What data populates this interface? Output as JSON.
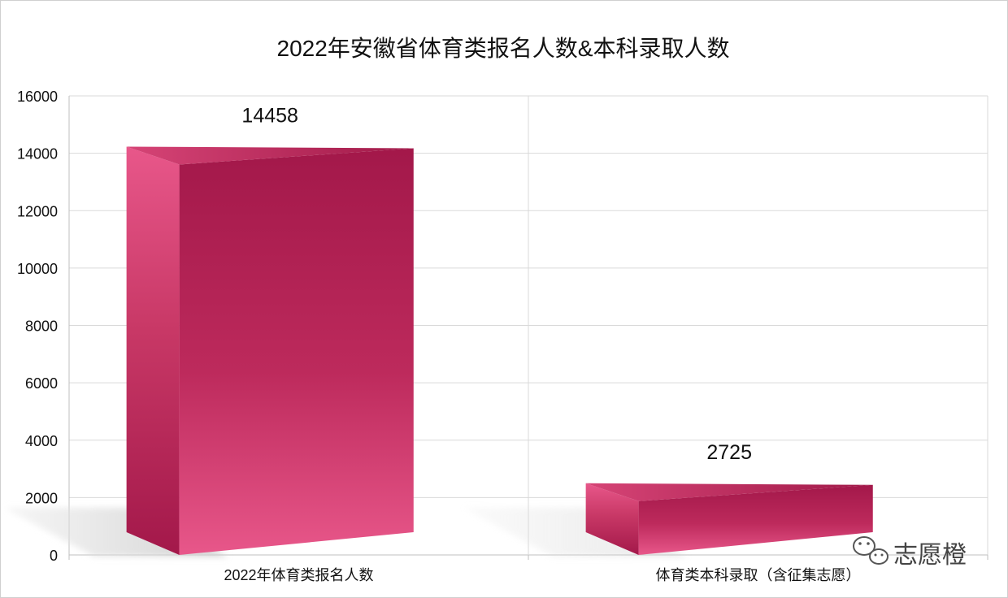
{
  "chart_data": {
    "type": "bar",
    "title": "2022年安徽省体育类报名人数&本科录取人数",
    "categories": [
      "2022年体育类报名人数",
      "体育类本科录取（含征集志愿）"
    ],
    "series": [
      {
        "values": [
          14458,
          2725
        ]
      }
    ],
    "data_labels": [
      "14458",
      "2725"
    ],
    "ylim": [
      0,
      16000
    ],
    "yticks": [
      0,
      2000,
      4000,
      6000,
      8000,
      10000,
      12000,
      14000,
      16000
    ],
    "grid": true,
    "legend": "none",
    "xlabel": "",
    "ylabel": "",
    "colors": {
      "bar_dark": "#a3184a",
      "bar_light": "#e8578a",
      "grid": "#d9d9d9",
      "axis": "#bfbfbf"
    }
  },
  "watermark": {
    "text": "志愿橙",
    "icon": "wechat-icon"
  }
}
